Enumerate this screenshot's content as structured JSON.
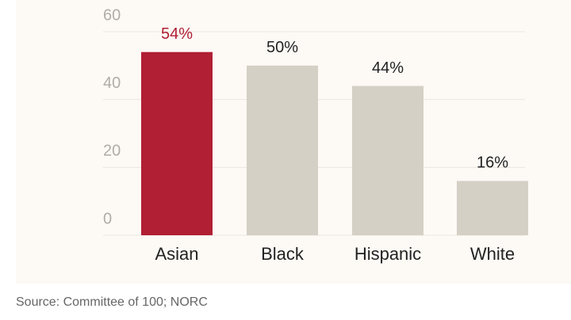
{
  "chart_data": {
    "type": "bar",
    "categories": [
      "Asian",
      "Black",
      "Hispanic",
      "White"
    ],
    "values": [
      54,
      50,
      44,
      16
    ],
    "value_labels": [
      "54%",
      "50%",
      "44%",
      "16%"
    ],
    "colors": [
      "#b01f33",
      "#d5d0c5",
      "#d5d0c5",
      "#d5d0c5"
    ],
    "label_colors": [
      "#b01f33",
      "#222222",
      "#222222",
      "#222222"
    ],
    "ylim": [
      0,
      60
    ],
    "yticks": [
      0,
      20,
      40,
      60
    ],
    "grid": true,
    "source": "Source: Committee of 100; NORC"
  }
}
